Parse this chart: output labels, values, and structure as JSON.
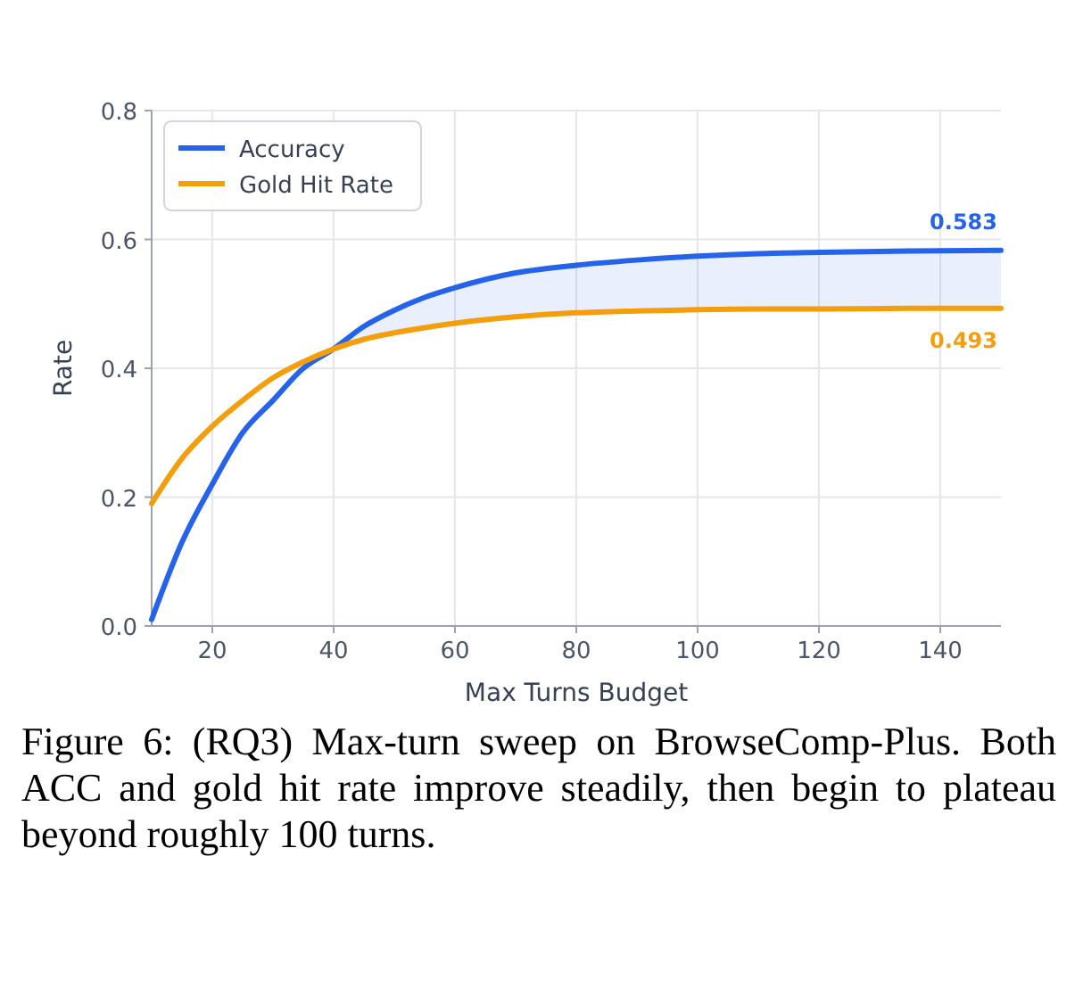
{
  "chart_data": {
    "type": "line",
    "xlabel": "Max Turns Budget",
    "ylabel": "Rate",
    "x": [
      10,
      15,
      20,
      25,
      30,
      35,
      40,
      45,
      50,
      55,
      60,
      70,
      80,
      90,
      100,
      110,
      120,
      135,
      150
    ],
    "series": [
      {
        "name": "Accuracy",
        "color": "#2563eb",
        "values": [
          0.01,
          0.13,
          0.22,
          0.3,
          0.35,
          0.4,
          0.43,
          0.465,
          0.49,
          0.51,
          0.525,
          0.548,
          0.56,
          0.568,
          0.574,
          0.578,
          0.58,
          0.582,
          0.583
        ],
        "lower": [
          null,
          null,
          null,
          null,
          null,
          null,
          0.43,
          0.445,
          0.455,
          0.463,
          0.47,
          0.48,
          0.486,
          0.489,
          0.491,
          0.492,
          0.492,
          0.493,
          0.493
        ],
        "upper": [
          null,
          null,
          null,
          null,
          null,
          null,
          0.43,
          0.465,
          0.49,
          0.51,
          0.525,
          0.548,
          0.56,
          0.568,
          0.574,
          0.578,
          0.58,
          0.582,
          0.583
        ],
        "value_labels": [
          null,
          null,
          null,
          null,
          null,
          null,
          null,
          null,
          null,
          null,
          null,
          null,
          null,
          null,
          null,
          null,
          null,
          null,
          "0.583"
        ]
      },
      {
        "name": "Gold Hit Rate",
        "color": "#f59e0b",
        "values": [
          0.19,
          0.26,
          0.31,
          0.35,
          0.385,
          0.41,
          0.43,
          0.445,
          0.455,
          0.463,
          0.47,
          0.48,
          0.486,
          0.489,
          0.491,
          0.492,
          0.492,
          0.493,
          0.493
        ],
        "value_labels": [
          null,
          null,
          null,
          null,
          null,
          null,
          null,
          null,
          null,
          null,
          null,
          null,
          null,
          null,
          null,
          null,
          null,
          null,
          "0.493"
        ]
      }
    ],
    "xlim": [
      10,
      150
    ],
    "xticks": [
      20,
      40,
      60,
      80,
      100,
      120,
      140
    ],
    "ylim": [
      0,
      0.8
    ],
    "yticks": [
      {
        "value": 0,
        "label": "0.0"
      },
      0.2,
      0.4,
      0.6,
      0.8
    ],
    "grid": true,
    "legend": "top left",
    "line_style": "solid",
    "marker": "none",
    "annotations": [
      "Figure 6:  (RQ3) Max-turn sweep on BrowseComp-Plus. Both ACC and gold hit rate improve steadily, then begin to plateau beyond roughly 100 turns."
    ]
  }
}
